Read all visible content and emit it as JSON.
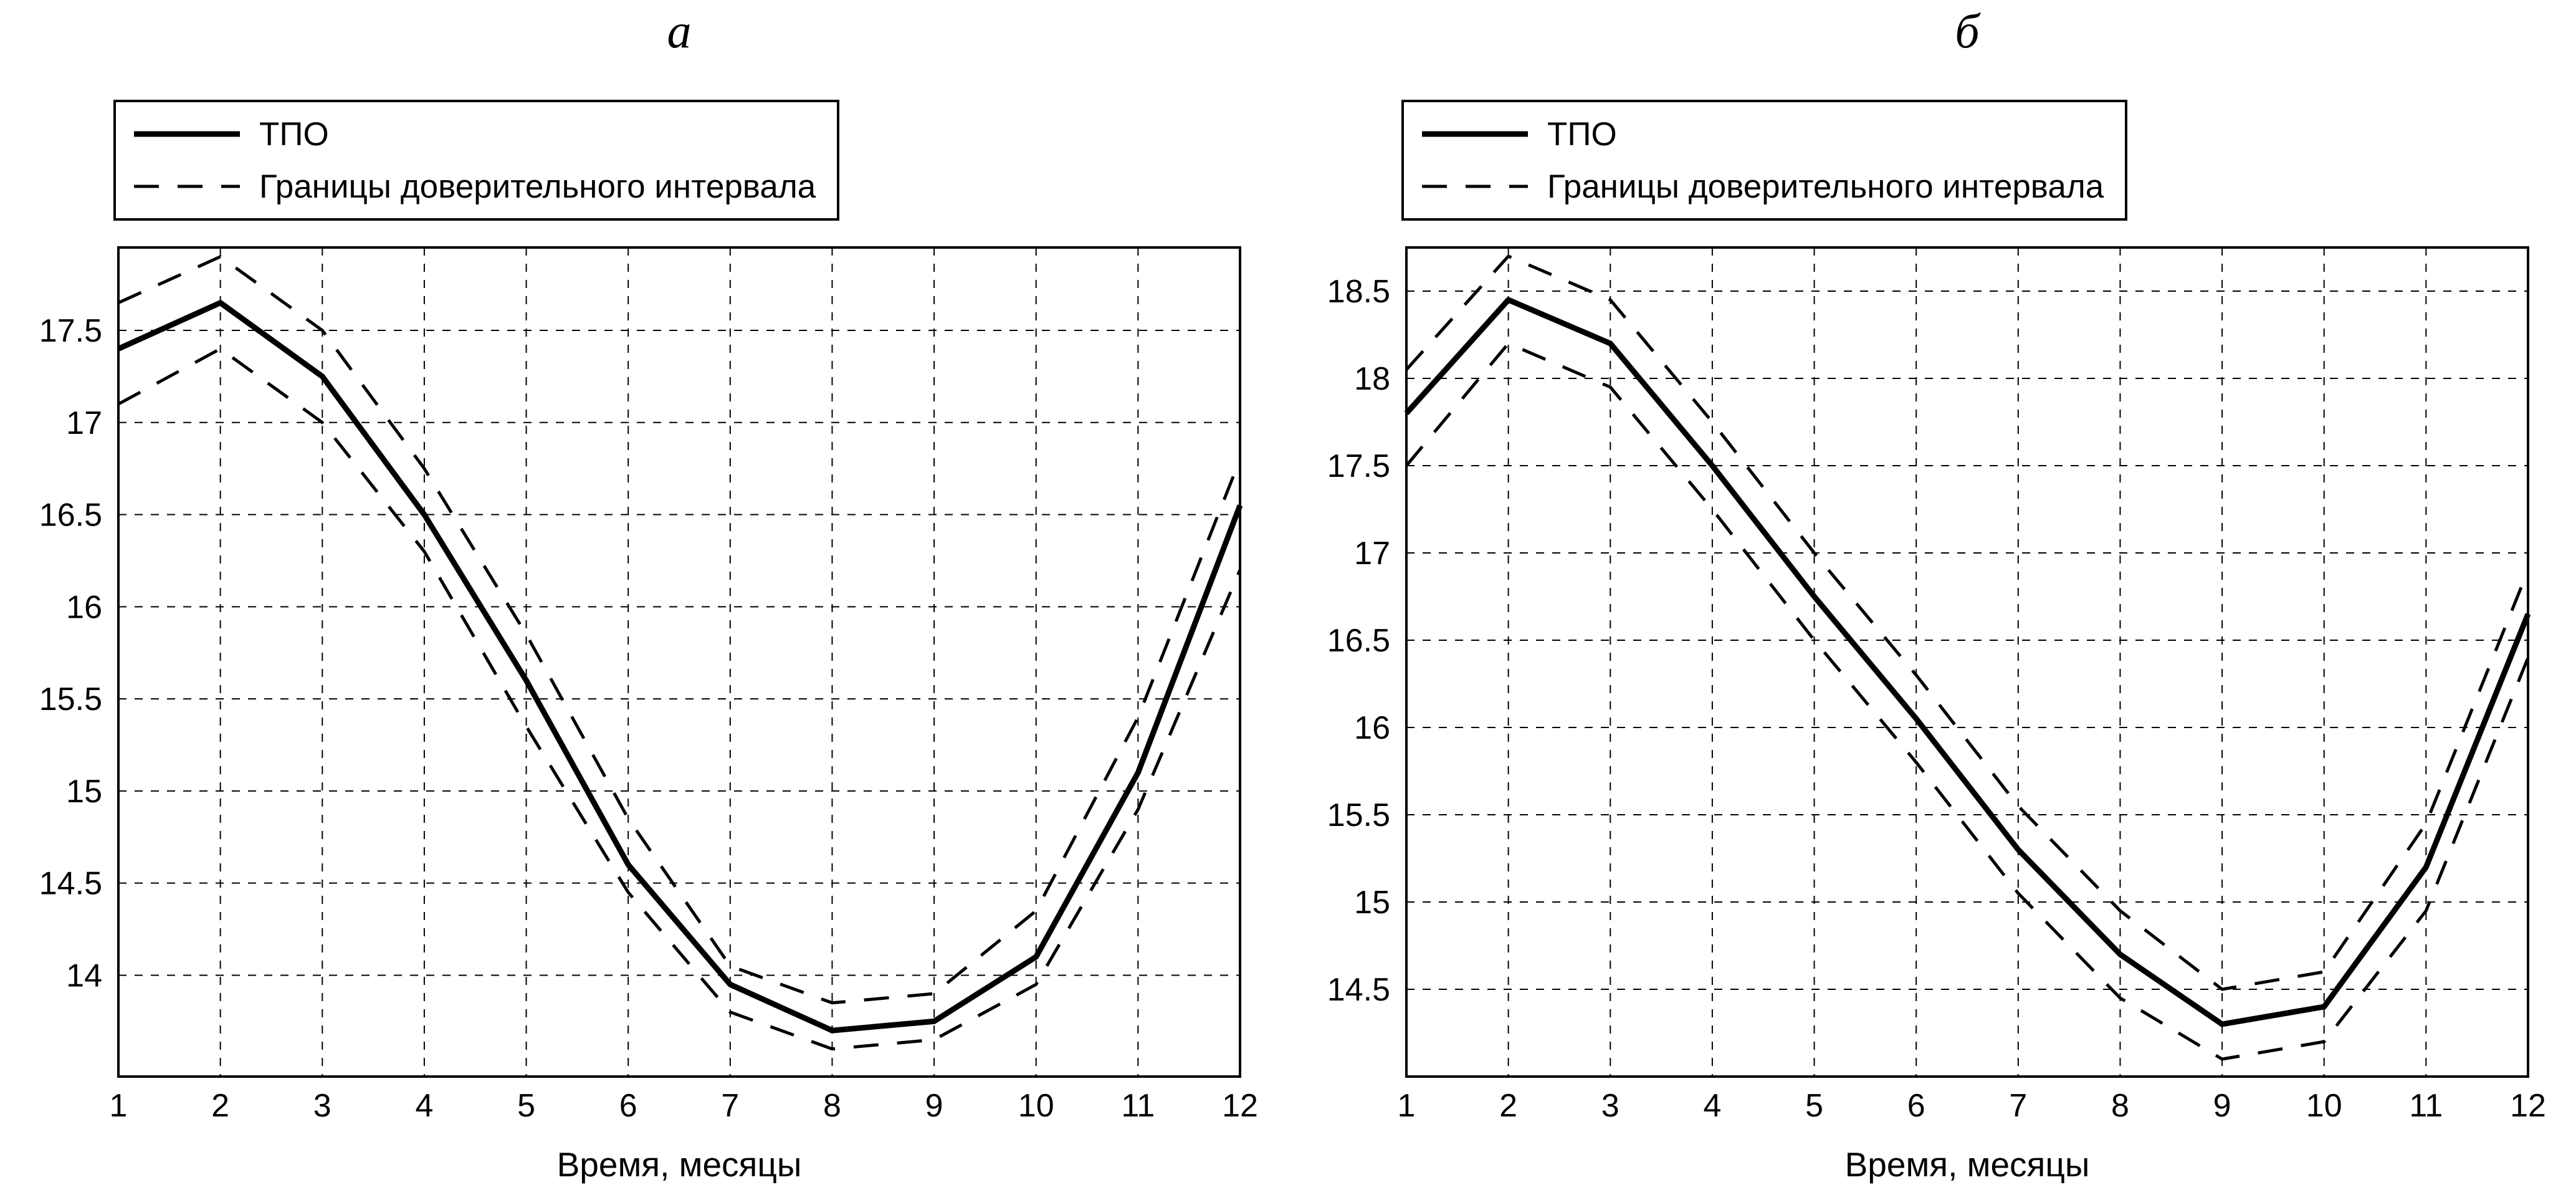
{
  "figure": {
    "background": "#ffffff",
    "line_color": "#000000"
  },
  "chart_data": [
    {
      "id": "a",
      "type": "line",
      "title": "а",
      "xlabel": "Время, месяцы",
      "legend": [
        "ТПО",
        "Границы доверительного интервала"
      ],
      "legend_position": "top-left",
      "grid": true,
      "x": [
        1,
        2,
        3,
        4,
        5,
        6,
        7,
        8,
        9,
        10,
        11,
        12
      ],
      "xlim": [
        1,
        12
      ],
      "ylim": [
        13.45,
        17.95
      ],
      "yticks": [
        14,
        14.5,
        15,
        15.5,
        16,
        16.5,
        17,
        17.5
      ],
      "series": [
        {
          "name": "ТПО",
          "style": "solid",
          "values": [
            17.4,
            17.65,
            17.25,
            16.5,
            15.6,
            14.6,
            13.95,
            13.7,
            13.75,
            14.1,
            15.1,
            16.55
          ]
        },
        {
          "name": "Границы доверительного интервала (верхняя)",
          "style": "dashed",
          "values": [
            17.65,
            17.9,
            17.5,
            16.75,
            15.85,
            14.85,
            14.05,
            13.85,
            13.9,
            14.35,
            15.4,
            16.8
          ]
        },
        {
          "name": "Границы доверительного интервала (нижняя)",
          "style": "dashed",
          "values": [
            17.1,
            17.4,
            17.0,
            16.3,
            15.35,
            14.45,
            13.8,
            13.6,
            13.65,
            13.95,
            14.9,
            16.2
          ]
        }
      ]
    },
    {
      "id": "b",
      "type": "line",
      "title": "б",
      "xlabel": "Время, месяцы",
      "legend": [
        "ТПО",
        "Границы доверительного интервала"
      ],
      "legend_position": "top-left",
      "grid": true,
      "x": [
        1,
        2,
        3,
        4,
        5,
        6,
        7,
        8,
        9,
        10,
        11,
        12
      ],
      "xlim": [
        1,
        12
      ],
      "ylim": [
        14.0,
        18.75
      ],
      "yticks": [
        14.5,
        15,
        15.5,
        16,
        16.5,
        17,
        17.5,
        18,
        18.5
      ],
      "series": [
        {
          "name": "ТПО",
          "style": "solid",
          "values": [
            17.8,
            18.45,
            18.2,
            17.5,
            16.75,
            16.05,
            15.3,
            14.7,
            14.3,
            14.4,
            15.2,
            16.65
          ]
        },
        {
          "name": "Границы доверительного интервала (верхняя)",
          "style": "dashed",
          "values": [
            18.05,
            18.7,
            18.45,
            17.75,
            17.0,
            16.3,
            15.55,
            14.95,
            14.5,
            14.6,
            15.45,
            16.9
          ]
        },
        {
          "name": "Границы доверительного интервала (нижняя)",
          "style": "dashed",
          "values": [
            17.5,
            18.2,
            17.95,
            17.25,
            16.5,
            15.8,
            15.05,
            14.45,
            14.1,
            14.2,
            14.95,
            16.4
          ]
        }
      ]
    }
  ]
}
